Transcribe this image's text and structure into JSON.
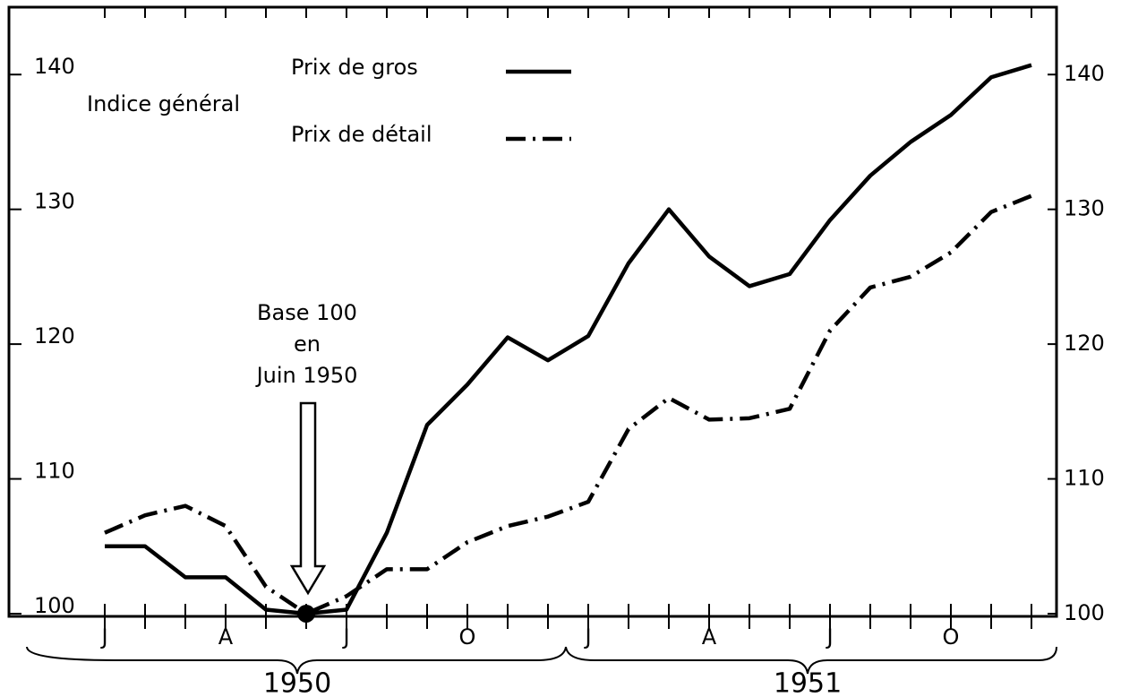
{
  "chart_data": {
    "type": "line",
    "y_label": "Indice général",
    "categories": [
      "J",
      null,
      null,
      "A",
      null,
      null,
      "J",
      null,
      null,
      "O",
      null,
      null,
      "J",
      null,
      null,
      "A",
      null,
      null,
      "J",
      null,
      null,
      "O",
      null,
      null
    ],
    "year_labels": [
      "1950",
      "1951"
    ],
    "series": [
      {
        "name": "Prix de gros",
        "color": "#000000",
        "line_style": "solid",
        "values": [
          105,
          105,
          102.7,
          102.7,
          100.3,
          100,
          100.3,
          106,
          114,
          117,
          120.5,
          118.8,
          120.6,
          126,
          130,
          126.5,
          124.3,
          125.2,
          129.2,
          132.5,
          135,
          137,
          139.8,
          140.7
        ]
      },
      {
        "name": "Prix de détail",
        "color": "#000000",
        "line_style": "dashdot",
        "values": [
          106,
          107.3,
          108,
          106.5,
          102,
          100,
          101.3,
          103.3,
          103.3,
          105.3,
          106.5,
          107.2,
          108.3,
          113.7,
          116,
          114.4,
          114.5,
          115.2,
          121,
          124.2,
          125,
          126.8,
          129.8,
          131
        ]
      }
    ],
    "annotation": [
      "Base 100",
      "en",
      "Juin 1950"
    ],
    "ylim": [
      99.8,
      145
    ],
    "yticks": [
      100,
      110,
      120,
      130,
      140
    ],
    "y2lim": [
      99.8,
      145
    ],
    "y2ticks": [
      100,
      110,
      120,
      130,
      140
    ]
  }
}
